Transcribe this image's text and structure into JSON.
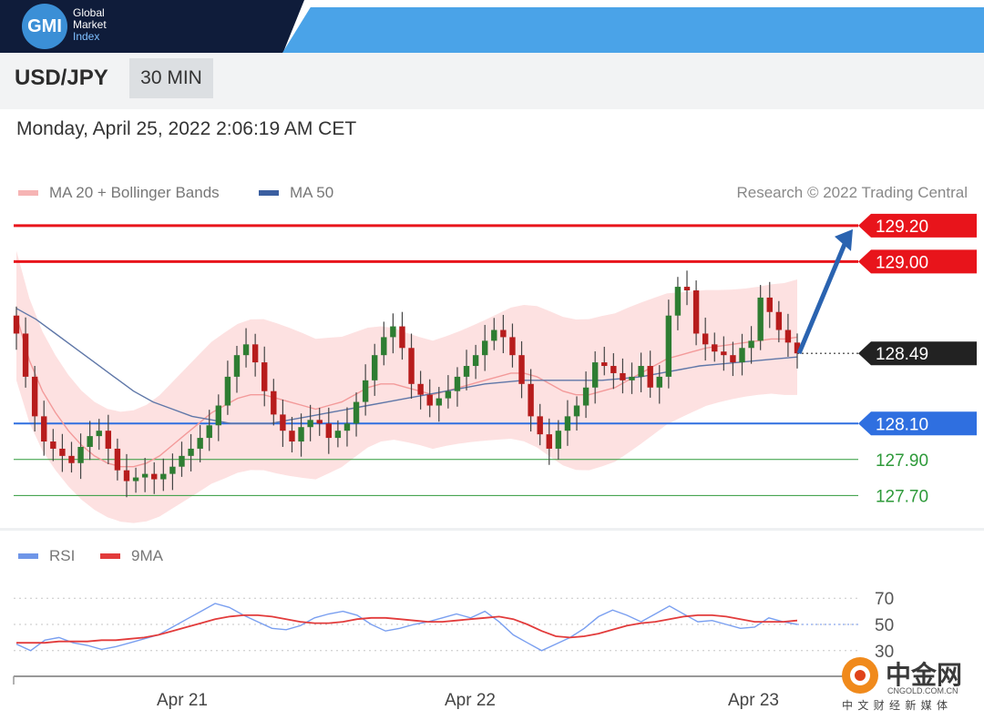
{
  "brand": {
    "logo": "GMI",
    "line1": "Global",
    "line2": "Market",
    "line3": "Index"
  },
  "header": {
    "pair": "USD/JPY",
    "timeframe": "30 MIN"
  },
  "datetime": "Monday, April 25, 2022 2:06:19 AM CET",
  "legend": {
    "ma20_label": "MA 20 + Bollinger Bands",
    "ma50_label": "MA 50",
    "credit": "Research © 2022 Trading Central",
    "colors": {
      "ma20": "#f4a6a6",
      "ma50": "#3b5fa0"
    }
  },
  "rsi_legend": {
    "rsi_label": "RSI",
    "ma_label": "9MA",
    "colors": {
      "rsi": "#6f96e8",
      "ma": "#e23b3b"
    }
  },
  "watermark": {
    "text": "中金网",
    "url": "CNGOLD.COM.CN",
    "sub": "中 文 财 经 新 媒 体"
  },
  "chart_data": {
    "type": "candlestick",
    "instrument": "USD/JPY",
    "interval": "30 MIN",
    "x_tick_labels": [
      "Apr 21",
      "Apr 22",
      "Apr 23"
    ],
    "y_range": [
      127.56,
      129.25
    ],
    "levels": [
      {
        "value": 129.2,
        "label": "129.20",
        "kind": "resistance",
        "color": "#e8141b"
      },
      {
        "value": 129.0,
        "label": "129.00",
        "kind": "resistance",
        "color": "#e8141b"
      },
      {
        "value": 128.49,
        "label": "128.49",
        "kind": "current",
        "color": "#222222"
      },
      {
        "value": 128.1,
        "label": "128.10",
        "kind": "support",
        "color": "#2f6fe0"
      },
      {
        "value": 127.9,
        "label": "127.90",
        "kind": "support",
        "color": "#2e9a3a"
      },
      {
        "value": 127.7,
        "label": "127.70",
        "kind": "support",
        "color": "#2e9a3a"
      }
    ],
    "projection": {
      "from": 128.49,
      "to": 129.2,
      "direction": "up",
      "color": "#2a63b0"
    },
    "close_series": [
      128.6,
      128.36,
      128.14,
      128.0,
      127.96,
      127.92,
      127.88,
      127.97,
      128.03,
      128.06,
      127.96,
      127.84,
      127.78,
      127.8,
      127.82,
      127.79,
      127.82,
      127.86,
      127.92,
      127.96,
      128.02,
      128.09,
      128.2,
      128.36,
      128.48,
      128.54,
      128.44,
      128.28,
      128.15,
      128.06,
      128.0,
      128.08,
      128.12,
      128.1,
      128.02,
      128.06,
      128.1,
      128.22,
      128.34,
      128.48,
      128.58,
      128.64,
      128.52,
      128.32,
      128.26,
      128.2,
      128.24,
      128.28,
      128.36,
      128.42,
      128.48,
      128.56,
      128.62,
      128.58,
      128.48,
      128.32,
      128.14,
      128.04,
      127.96,
      128.06,
      128.14,
      128.2,
      128.3,
      128.44,
      128.42,
      128.38,
      128.34,
      128.36,
      128.42,
      128.3,
      128.36,
      128.7,
      128.86,
      128.84,
      128.6,
      128.54,
      128.5,
      128.48,
      128.44,
      128.52,
      128.56,
      128.8,
      128.72,
      128.62,
      128.55,
      128.49
    ],
    "ma20_series": [
      128.7,
      128.45,
      128.28,
      128.16,
      128.06,
      127.98,
      127.92,
      127.88,
      127.86,
      127.86,
      127.88,
      127.92,
      127.98,
      128.04,
      128.1,
      128.16,
      128.2,
      128.24,
      128.26,
      128.26,
      128.24,
      128.22,
      128.2,
      128.18,
      128.2,
      128.22,
      128.26,
      128.3,
      128.32,
      128.32,
      128.3,
      128.28,
      128.26,
      128.28,
      128.3,
      128.32,
      128.34,
      128.36,
      128.38,
      128.38,
      128.36,
      128.32,
      128.28,
      128.26,
      128.26,
      128.28,
      128.3,
      128.34,
      128.38,
      128.42,
      128.46,
      128.48,
      128.5,
      128.52,
      128.53,
      128.54,
      128.55,
      128.56,
      128.57,
      128.57,
      128.58
    ],
    "ma50_series": [
      128.74,
      128.68,
      128.6,
      128.52,
      128.44,
      128.36,
      128.28,
      128.22,
      128.18,
      128.14,
      128.12,
      128.1,
      128.1,
      128.1,
      128.12,
      128.14,
      128.16,
      128.18,
      128.2,
      128.22,
      128.24,
      128.26,
      128.28,
      128.3,
      128.32,
      128.33,
      128.34,
      128.34,
      128.34,
      128.34,
      128.34,
      128.35,
      128.36,
      128.38,
      128.4,
      128.42,
      128.43,
      128.44,
      128.45,
      128.46,
      128.47
    ],
    "rsi": {
      "levels": [
        70,
        50,
        30
      ],
      "tick_labels": [
        "70",
        "50",
        "30"
      ],
      "y_range": [
        25,
        75
      ],
      "series": [
        35,
        30,
        38,
        40,
        36,
        34,
        31,
        33,
        36,
        39,
        42,
        48,
        54,
        60,
        66,
        63,
        57,
        52,
        47,
        46,
        49,
        55,
        58,
        60,
        57,
        50,
        45,
        47,
        50,
        52,
        55,
        58,
        55,
        60,
        52,
        42,
        36,
        30,
        35,
        40,
        47,
        56,
        61,
        57,
        52,
        58,
        64,
        58,
        52,
        53,
        50,
        47,
        48,
        55,
        52,
        50
      ],
      "ma9": [
        36,
        36,
        36,
        37,
        37,
        37,
        38,
        38,
        39,
        40,
        42,
        45,
        48,
        51,
        54,
        56,
        57,
        57,
        56,
        54,
        52,
        51,
        51,
        52,
        54,
        55,
        55,
        54,
        53,
        52,
        52,
        53,
        54,
        55,
        56,
        54,
        50,
        45,
        41,
        40,
        41,
        43,
        46,
        49,
        51,
        52,
        54,
        56,
        57,
        57,
        56,
        54,
        52,
        52,
        52,
        53
      ]
    }
  }
}
